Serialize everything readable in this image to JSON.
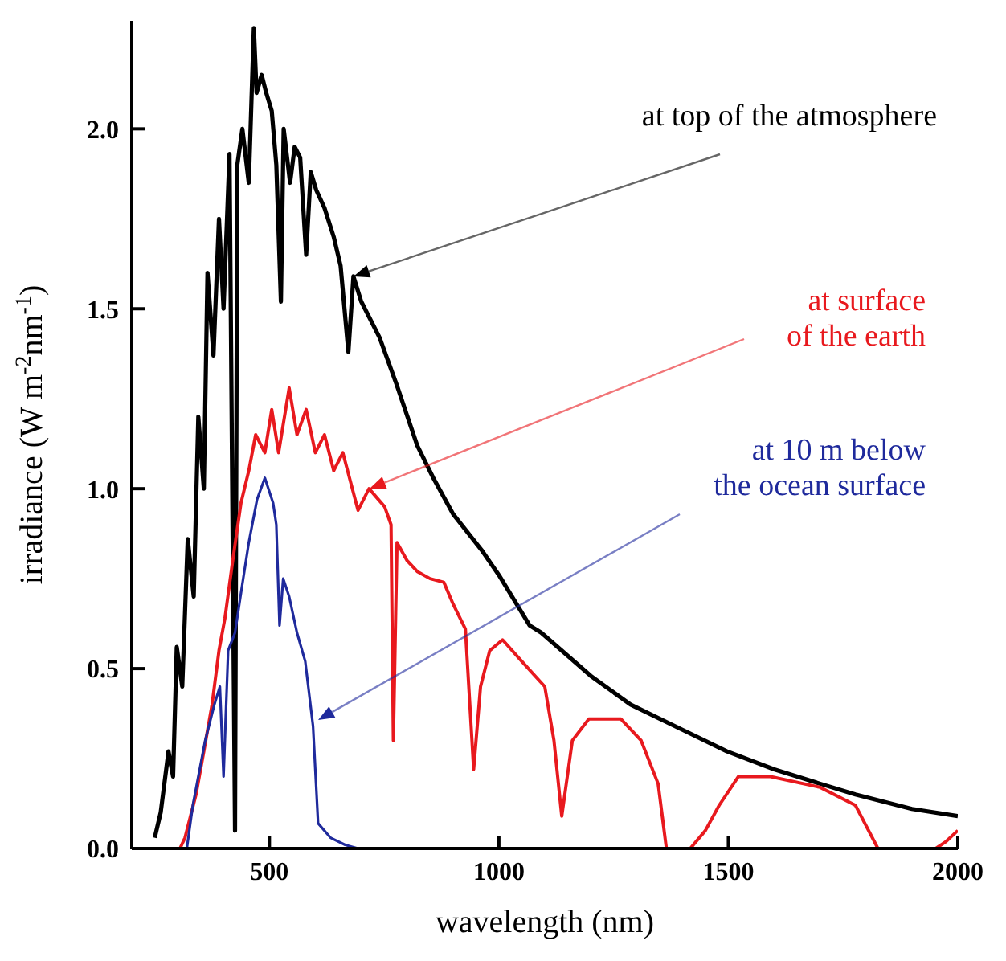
{
  "chart_data": {
    "type": "line",
    "xlabel": "wavelength (nm)",
    "ylabel": "irradiance (W m$^{-2}$nm$^{-1}$)",
    "xlim": [
      200,
      2000
    ],
    "xticks": [
      500,
      1000,
      1500,
      2000
    ],
    "ylim": [
      0,
      2.3
    ],
    "yticks": [
      {
        "value": 0,
        "label": "0.0"
      },
      {
        "value": 0.5,
        "label": "0.5"
      },
      {
        "value": 1,
        "label": "1.0"
      },
      {
        "value": 1.5,
        "label": "1.5"
      },
      {
        "value": 2,
        "label": "2.0"
      }
    ],
    "marker": "none",
    "line_style": "solid",
    "series": [
      {
        "color": "#000000",
        "x": [
          250,
          263,
          280,
          290,
          298,
          310,
          322,
          335,
          345,
          357,
          365,
          378,
          390,
          400,
          413,
          425,
          430,
          441,
          455,
          466,
          472,
          483,
          493,
          505,
          515,
          525,
          531,
          545,
          555,
          567,
          580,
          590,
          602,
          620,
          640,
          655,
          672,
          683,
          700,
          740,
          777,
          822,
          857,
          900,
          962,
          1000,
          1067,
          1092,
          1200,
          1287,
          1400,
          1497,
          1600,
          1700,
          1777,
          1900,
          2000
        ],
        "values": [
          0.03,
          0.1,
          0.27,
          0.2,
          0.56,
          0.45,
          0.86,
          0.7,
          1.2,
          1.0,
          1.6,
          1.37,
          1.75,
          1.5,
          1.93,
          0.05,
          1.9,
          2.0,
          1.85,
          2.28,
          2.1,
          2.15,
          2.1,
          2.05,
          1.9,
          1.52,
          2.0,
          1.85,
          1.95,
          1.92,
          1.65,
          1.88,
          1.83,
          1.78,
          1.7,
          1.62,
          1.38,
          1.59,
          1.52,
          1.42,
          1.29,
          1.12,
          1.03,
          0.93,
          0.83,
          0.76,
          0.62,
          0.6,
          0.48,
          0.4,
          0.33,
          0.27,
          0.22,
          0.18,
          0.15,
          0.11,
          0.09
        ]
      },
      {
        "color": "#e8191e",
        "x": [
          305,
          316,
          340,
          357,
          375,
          390,
          403,
          420,
          438,
          455,
          470,
          490,
          505,
          520,
          543,
          560,
          580,
          600,
          620,
          640,
          660,
          693,
          717,
          751,
          765,
          770,
          778,
          800,
          822,
          850,
          880,
          900,
          927,
          945,
          960,
          980,
          1008,
          1050,
          1100,
          1120,
          1137,
          1160,
          1196,
          1266,
          1310,
          1347,
          1365,
          1417,
          1450,
          1480,
          1522,
          1592,
          1700,
          1777,
          1826,
          1952,
          1975,
          2000
        ],
        "values": [
          0,
          0.03,
          0.15,
          0.27,
          0.4,
          0.55,
          0.64,
          0.8,
          0.96,
          1.05,
          1.15,
          1.1,
          1.22,
          1.1,
          1.28,
          1.15,
          1.22,
          1.1,
          1.15,
          1.05,
          1.1,
          0.94,
          1.0,
          0.95,
          0.9,
          0.3,
          0.85,
          0.8,
          0.77,
          0.75,
          0.74,
          0.68,
          0.61,
          0.22,
          0.45,
          0.55,
          0.58,
          0.52,
          0.45,
          0.3,
          0.09,
          0.3,
          0.36,
          0.36,
          0.3,
          0.18,
          0,
          0,
          0.05,
          0.12,
          0.2,
          0.2,
          0.17,
          0.12,
          0,
          0,
          0.02,
          0.05
        ]
      },
      {
        "color": "#1f2a9c",
        "x": [
          320,
          333,
          360,
          380,
          392,
          400,
          410,
          425,
          438,
          455,
          473,
          490,
          508,
          515,
          522,
          530,
          543,
          560,
          578,
          595,
          606,
          633,
          665,
          693
        ],
        "values": [
          0,
          0.12,
          0.3,
          0.4,
          0.45,
          0.2,
          0.55,
          0.6,
          0.71,
          0.85,
          0.97,
          1.03,
          0.96,
          0.9,
          0.62,
          0.75,
          0.7,
          0.6,
          0.52,
          0.34,
          0.07,
          0.03,
          0.01,
          0
        ]
      }
    ],
    "annotations": [
      "at top of the atmosphere",
      "at surface\nof the earth",
      "at 10 m below\nthe ocean surface"
    ]
  }
}
